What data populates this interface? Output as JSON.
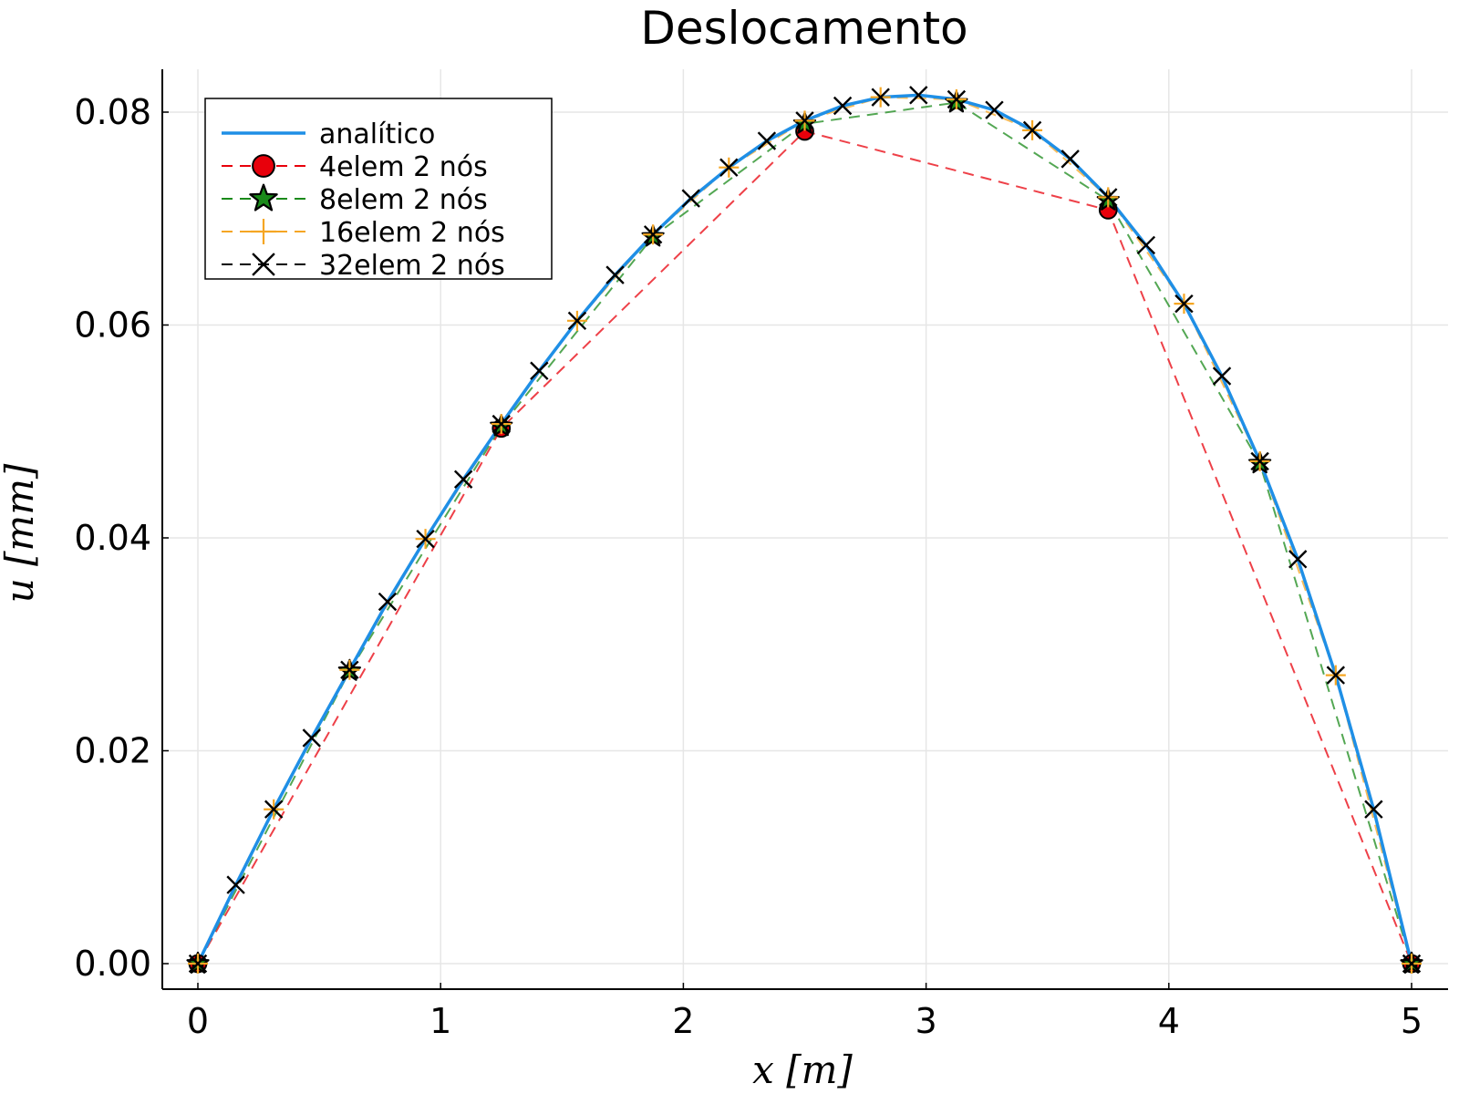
{
  "chart_data": {
    "type": "line",
    "title": "Deslocamento",
    "xlabel": "x [m]",
    "ylabel": "u [mm]",
    "xlim": [
      0,
      5
    ],
    "ylim": [
      0,
      0.08
    ],
    "x_ticks": [
      "0",
      "1",
      "2",
      "3",
      "4",
      "5"
    ],
    "y_ticks": [
      "0.00",
      "0.02",
      "0.04",
      "0.06",
      "0.08"
    ],
    "grid": true,
    "legend_position": "top-left",
    "series": [
      {
        "name": "analítico",
        "style": "solid",
        "color": "#1f8fe6",
        "marker": "none",
        "x": [
          0,
          0.15625,
          0.3125,
          0.46875,
          0.625,
          0.78125,
          0.9375,
          1.09375,
          1.25,
          1.40625,
          1.5625,
          1.71875,
          1.875,
          2.03125,
          2.1875,
          2.34375,
          2.5,
          2.65625,
          2.8125,
          2.96875,
          3.125,
          3.28125,
          3.4375,
          3.59375,
          3.75,
          3.90625,
          4.0625,
          4.21875,
          4.375,
          4.53125,
          4.6875,
          4.84375,
          5
        ],
        "y": [
          0,
          0.0074,
          0.0145,
          0.0212,
          0.0276,
          0.034,
          0.0399,
          0.0455,
          0.0507,
          0.0557,
          0.0604,
          0.0647,
          0.0685,
          0.0719,
          0.0748,
          0.0773,
          0.0792,
          0.0806,
          0.0814,
          0.0816,
          0.0812,
          0.0802,
          0.0783,
          0.0756,
          0.072,
          0.0675,
          0.062,
          0.0552,
          0.0472,
          0.038,
          0.0271,
          0.0145,
          0
        ]
      },
      {
        "name": "4elem 2 nós",
        "style": "dashed",
        "color": "#e8000b",
        "marker": "circle",
        "x": [
          0,
          1.25,
          2.5,
          3.75,
          5
        ],
        "y": [
          0,
          0.0503,
          0.0782,
          0.0708,
          0
        ]
      },
      {
        "name": "8elem 2 nós",
        "style": "dashed",
        "color": "#1a8a1a",
        "marker": "star",
        "x": [
          0,
          0.625,
          1.25,
          1.875,
          2.5,
          3.125,
          3.75,
          4.375,
          5
        ],
        "y": [
          0,
          0.0275,
          0.0505,
          0.0683,
          0.0789,
          0.0809,
          0.0717,
          0.047,
          0
        ]
      },
      {
        "name": "16elem 2 nós",
        "style": "dashed",
        "color": "#f5a623",
        "marker": "plus",
        "x": [
          0,
          0.3125,
          0.625,
          0.9375,
          1.25,
          1.5625,
          1.875,
          2.1875,
          2.5,
          2.8125,
          3.125,
          3.4375,
          3.75,
          4.0625,
          4.375,
          4.6875,
          5
        ],
        "y": [
          0,
          0.0145,
          0.0276,
          0.0399,
          0.0507,
          0.0604,
          0.0685,
          0.0748,
          0.0792,
          0.0814,
          0.0812,
          0.0783,
          0.072,
          0.062,
          0.0472,
          0.0271,
          0
        ]
      },
      {
        "name": "32elem 2 nós",
        "style": "dashed",
        "color": "#000000",
        "marker": "x",
        "x": [
          0,
          0.15625,
          0.3125,
          0.46875,
          0.625,
          0.78125,
          0.9375,
          1.09375,
          1.25,
          1.40625,
          1.5625,
          1.71875,
          1.875,
          2.03125,
          2.1875,
          2.34375,
          2.5,
          2.65625,
          2.8125,
          2.96875,
          3.125,
          3.28125,
          3.4375,
          3.59375,
          3.75,
          3.90625,
          4.0625,
          4.21875,
          4.375,
          4.53125,
          4.6875,
          4.84375,
          5
        ],
        "y": [
          0,
          0.0074,
          0.0145,
          0.0212,
          0.0276,
          0.034,
          0.0399,
          0.0455,
          0.0507,
          0.0557,
          0.0604,
          0.0647,
          0.0685,
          0.0719,
          0.0748,
          0.0773,
          0.0792,
          0.0806,
          0.0814,
          0.0816,
          0.0812,
          0.0802,
          0.0783,
          0.0756,
          0.072,
          0.0675,
          0.062,
          0.0552,
          0.0472,
          0.038,
          0.0271,
          0.0145,
          0
        ]
      }
    ]
  }
}
